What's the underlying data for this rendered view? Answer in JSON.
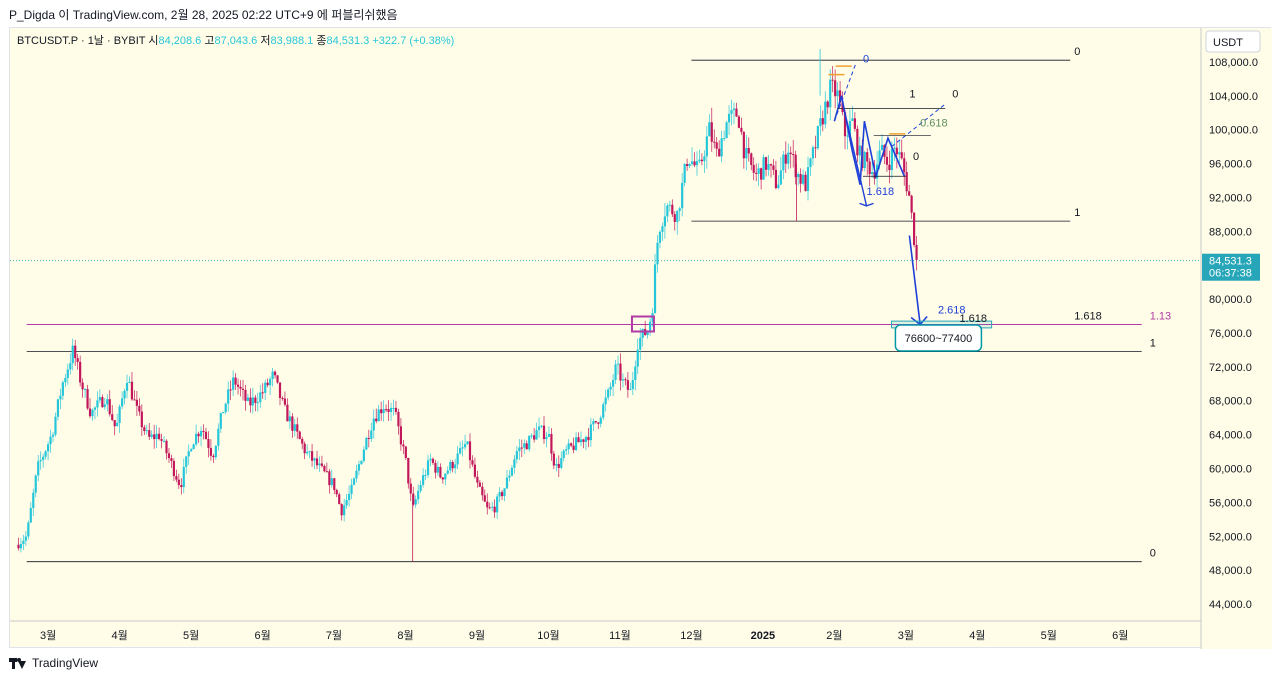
{
  "caption": "P_Digda 이 TradingView.com, 2월 28, 2025 02:22 UTC+9 에 퍼블리쉬했음",
  "footer": {
    "brand": "TradingView"
  },
  "header": {
    "symbol": "BTCUSDT.P · 1날 · BYBIT",
    "open_label": "시",
    "open_value": "84,208.6",
    "high_label": "고",
    "high_value": "87,043.6",
    "low_label": "저",
    "low_value": "83,988.1",
    "close_label": "종",
    "close_value": "84,531.3",
    "change": "+322.7 (+0.38%)"
  },
  "colors": {
    "background": "#fffde7",
    "up": "#26c6da",
    "down": "#c2185b",
    "pattern_blue": "#1e40d8",
    "fib_purple": "#b23aa6",
    "label_teal": "#0097a7",
    "price_tag": "#26a6b8"
  },
  "chart_data": {
    "type": "candlestick",
    "currency": "USDT",
    "ylim": [
      42000,
      112000
    ],
    "y_ticks": [
      "44,000.0",
      "48,000.0",
      "52,000.0",
      "56,000.0",
      "60,000.0",
      "64,000.0",
      "68,000.0",
      "72,000.0",
      "76,000.0",
      "80,000.0",
      "84,000.0",
      "88,000.0",
      "92,000.0",
      "96,000.0",
      "100,000.0",
      "104,000.0",
      "108,000.0"
    ],
    "x_labels": [
      {
        "label": "3월",
        "t": 0.5
      },
      {
        "label": "4월",
        "t": 1.5
      },
      {
        "label": "5월",
        "t": 2.5
      },
      {
        "label": "6월",
        "t": 3.5
      },
      {
        "label": "7월",
        "t": 4.5
      },
      {
        "label": "8월",
        "t": 5.5
      },
      {
        "label": "9월",
        "t": 6.5
      },
      {
        "label": "10월",
        "t": 7.5
      },
      {
        "label": "11월",
        "t": 8.5
      },
      {
        "label": "12월",
        "t": 9.5
      },
      {
        "label": "2025",
        "t": 10.5
      },
      {
        "label": "2월",
        "t": 11.5
      },
      {
        "label": "3월",
        "t": 12.5
      },
      {
        "label": "4월",
        "t": 13.5
      },
      {
        "label": "5월",
        "t": 14.5
      },
      {
        "label": "6월",
        "t": 15.5
      }
    ],
    "xlim": [
      0.05,
      16.0
    ],
    "last_price": "84,531.3",
    "countdown": "06:37:38",
    "path": [
      [
        0.05,
        51000
      ],
      [
        0.2,
        52000
      ],
      [
        0.35,
        60000
      ],
      [
        0.55,
        64000
      ],
      [
        0.7,
        70000
      ],
      [
        0.85,
        74000
      ],
      [
        0.95,
        70500
      ],
      [
        1.1,
        66500
      ],
      [
        1.3,
        68500
      ],
      [
        1.45,
        64500
      ],
      [
        1.6,
        71000
      ],
      [
        1.75,
        66500
      ],
      [
        1.9,
        63500
      ],
      [
        2.05,
        64000
      ],
      [
        2.2,
        61000
      ],
      [
        2.35,
        58000
      ],
      [
        2.5,
        63000
      ],
      [
        2.65,
        65000
      ],
      [
        2.8,
        61500
      ],
      [
        2.95,
        67000
      ],
      [
        3.1,
        70500
      ],
      [
        3.3,
        67500
      ],
      [
        3.5,
        69000
      ],
      [
        3.65,
        71000
      ],
      [
        3.8,
        67000
      ],
      [
        3.95,
        64500
      ],
      [
        4.1,
        62000
      ],
      [
        4.3,
        60000
      ],
      [
        4.5,
        58000
      ],
      [
        4.6,
        55000
      ],
      [
        4.75,
        57500
      ],
      [
        4.9,
        62000
      ],
      [
        5.05,
        66000
      ],
      [
        5.2,
        67500
      ],
      [
        5.35,
        66500
      ],
      [
        5.5,
        61000
      ],
      [
        5.6,
        55000
      ],
      [
        5.7,
        58000
      ],
      [
        5.85,
        61000
      ],
      [
        6.0,
        59000
      ],
      [
        6.2,
        61000
      ],
      [
        6.35,
        63000
      ],
      [
        6.5,
        58000
      ],
      [
        6.65,
        55000
      ],
      [
        6.75,
        55500
      ],
      [
        6.9,
        58000
      ],
      [
        7.05,
        62000
      ],
      [
        7.2,
        63000
      ],
      [
        7.35,
        64500
      ],
      [
        7.5,
        64000
      ],
      [
        7.6,
        60000
      ],
      [
        7.75,
        62000
      ],
      [
        7.9,
        63000
      ],
      [
        8.05,
        64000
      ],
      [
        8.2,
        66000
      ],
      [
        8.35,
        69000
      ],
      [
        8.45,
        72000
      ],
      [
        8.55,
        70000
      ],
      [
        8.65,
        69000
      ],
      [
        8.75,
        75000
      ],
      [
        8.9,
        76500
      ],
      [
        8.97,
        80000
      ],
      [
        9.0,
        85000
      ],
      [
        9.05,
        88500
      ],
      [
        9.15,
        91000
      ],
      [
        9.3,
        90000
      ],
      [
        9.45,
        97000
      ],
      [
        9.6,
        95000
      ],
      [
        9.75,
        100000
      ],
      [
        9.85,
        97000
      ],
      [
        10.0,
        101000
      ],
      [
        10.15,
        102000
      ],
      [
        10.25,
        97000
      ],
      [
        10.4,
        94500
      ],
      [
        10.55,
        96000
      ],
      [
        10.7,
        93500
      ],
      [
        10.85,
        98000
      ],
      [
        11.0,
        94500
      ],
      [
        11.1,
        93500
      ],
      [
        11.2,
        97000
      ],
      [
        11.35,
        102000
      ],
      [
        11.45,
        105000
      ],
      [
        11.55,
        104000
      ],
      [
        11.65,
        99500
      ],
      [
        11.75,
        101000
      ],
      [
        11.85,
        97000
      ],
      [
        11.95,
        96000
      ],
      [
        12.05,
        95000
      ],
      [
        12.15,
        97500
      ],
      [
        12.25,
        96000
      ],
      [
        12.35,
        98000
      ],
      [
        12.45,
        96000
      ],
      [
        12.55,
        92000
      ],
      [
        12.6,
        88500
      ],
      [
        12.65,
        84500
      ]
    ],
    "pattern_path": [
      [
        11.5,
        101000
      ],
      [
        11.6,
        104000
      ],
      [
        11.75,
        97500
      ],
      [
        11.86,
        93500
      ],
      [
        11.92,
        101000
      ],
      [
        12.08,
        94500
      ],
      [
        12.25,
        99000
      ],
      [
        12.48,
        94500
      ]
    ],
    "pattern_wicks": [
      [
        11.53,
        106500,
        99000
      ],
      [
        11.63,
        107500,
        101500
      ],
      [
        12.38,
        99500,
        96500
      ]
    ],
    "projection_path": [
      [
        12.55,
        87500
      ],
      [
        12.7,
        77000
      ]
    ],
    "lines": [
      {
        "y": 108200,
        "x1": 9.5,
        "x2": 14.8,
        "label": "0",
        "color": "#131722",
        "width": 0.8
      },
      {
        "y": 89200,
        "x1": 9.5,
        "x2": 14.8,
        "label": "1",
        "color": "#131722",
        "width": 0.8
      },
      {
        "y": 77000,
        "x1": 9.5,
        "x2": 14.8,
        "label": "1.618",
        "color": "#131722",
        "width": 1.0
      },
      {
        "y": 77000,
        "x1": 0.2,
        "x2": 15.8,
        "label": "1.13",
        "color": "#b23aa6",
        "width": 1.0
      },
      {
        "y": 73800,
        "x1": 0.2,
        "x2": 15.8,
        "label": "1",
        "color": "#131722",
        "width": 0.8
      },
      {
        "y": 49000,
        "x1": 0.2,
        "x2": 15.8,
        "label": "0",
        "color": "#131722",
        "width": 0.8
      }
    ],
    "pattern_labels": [
      {
        "text": "0",
        "x": 11.9,
        "y": 107900,
        "color": "#1e40d8"
      },
      {
        "text": "1",
        "x": 12.55,
        "y": 103800,
        "color": "#131722"
      },
      {
        "text": "0",
        "x": 13.15,
        "y": 103800,
        "color": "#131722"
      },
      {
        "text": "0.618",
        "x": 12.7,
        "y": 100400,
        "color": "#5f8f5c"
      },
      {
        "text": "0",
        "x": 12.6,
        "y": 96400,
        "color": "#131722"
      },
      {
        "text": "1.618",
        "x": 11.95,
        "y": 92300,
        "color": "#1e40d8"
      },
      {
        "text": "2.618",
        "x": 12.95,
        "y": 78300,
        "color": "#1e40d8"
      },
      {
        "text": "1.618",
        "x": 13.25,
        "y": 77300,
        "color": "#131722"
      }
    ],
    "target_label": "76600~77400",
    "target_zone": [
      76600,
      77400
    ]
  }
}
